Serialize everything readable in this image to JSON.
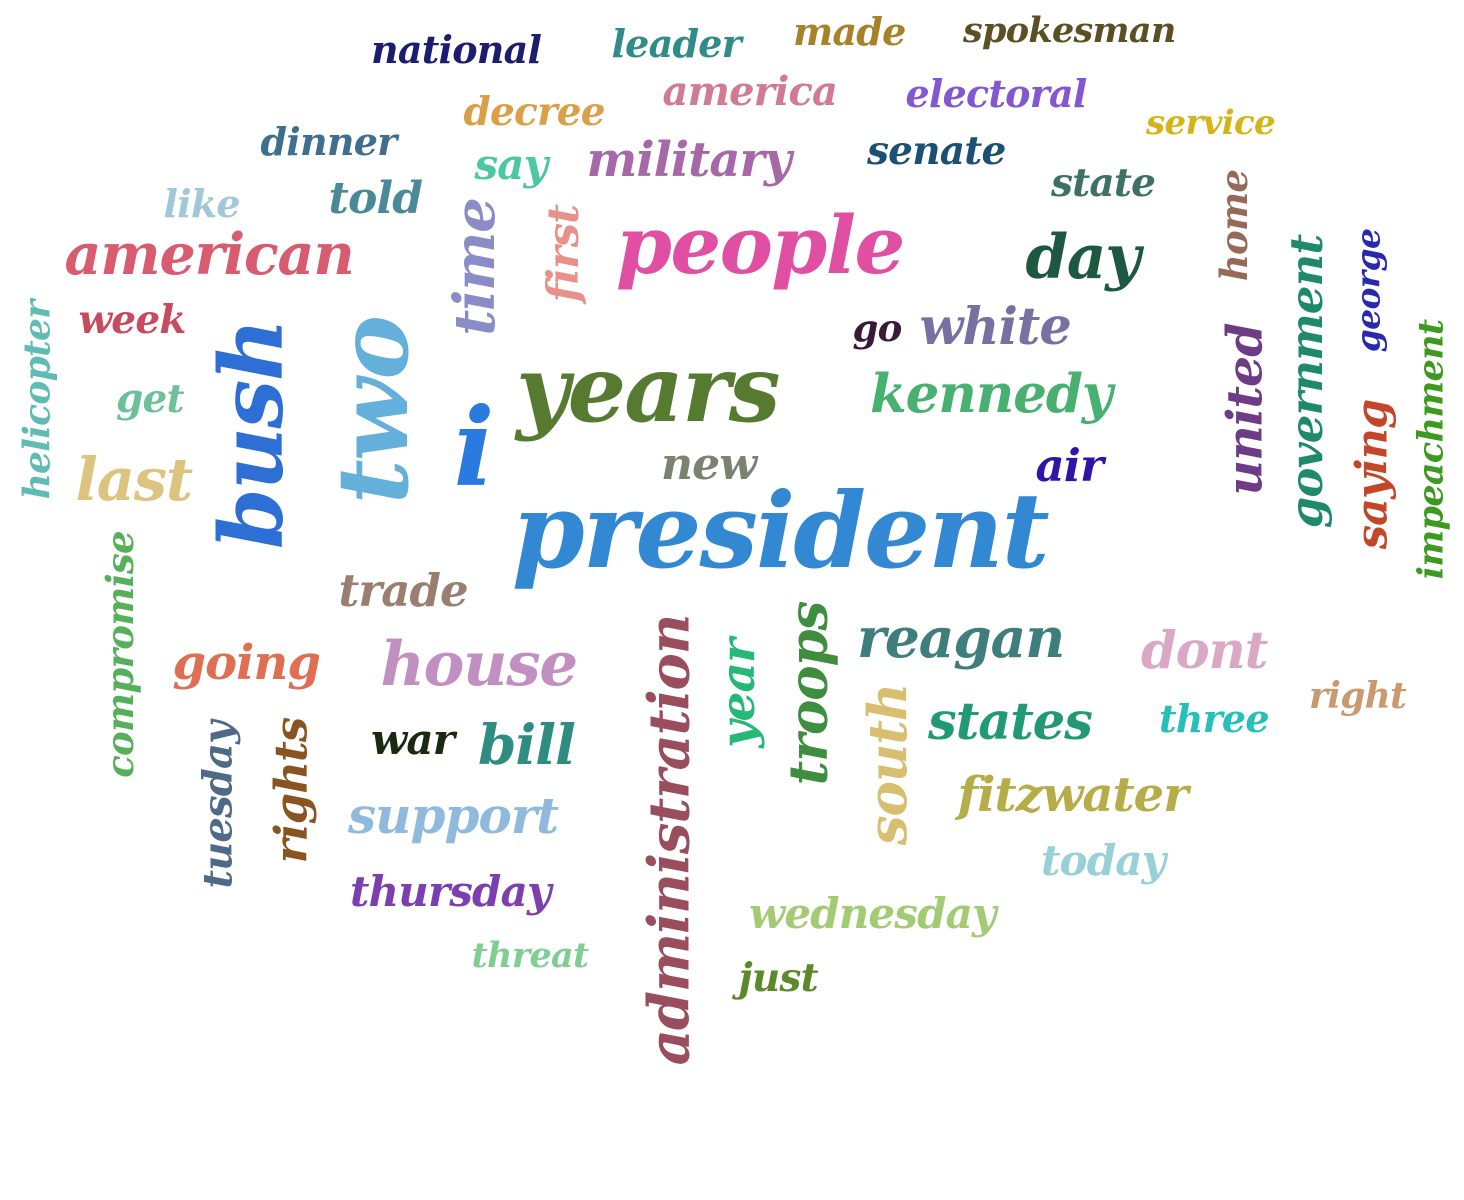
{
  "words": [
    {
      "text": "president",
      "color": "#3388d4",
      "vertical": false
    },
    {
      "text": "years",
      "color": "#557a30",
      "vertical": false
    },
    {
      "text": "people",
      "color": "#e04fa2",
      "vertical": false
    },
    {
      "text": "bush",
      "color": "#2e6fd6",
      "vertical": true
    },
    {
      "text": "two",
      "color": "#65b0da",
      "vertical": true
    },
    {
      "text": "i",
      "color": "#2a7ae0",
      "vertical": false
    },
    {
      "text": "american",
      "color": "#d95b70",
      "vertical": false
    },
    {
      "text": "administration",
      "color": "#9a4d5c",
      "vertical": true
    },
    {
      "text": "house",
      "color": "#c190c0",
      "vertical": false
    },
    {
      "text": "white",
      "color": "#7870a0",
      "vertical": false
    },
    {
      "text": "kennedy",
      "color": "#48b070",
      "vertical": false
    },
    {
      "text": "reagan",
      "color": "#3e7e7c",
      "vertical": false
    },
    {
      "text": "day",
      "color": "#1f5840",
      "vertical": false
    },
    {
      "text": "military",
      "color": "#a768a8",
      "vertical": false
    },
    {
      "text": "time",
      "color": "#8a8cc8",
      "vertical": true
    },
    {
      "text": "last",
      "color": "#dcc47e",
      "vertical": false
    },
    {
      "text": "united",
      "color": "#6e3b86",
      "vertical": true
    },
    {
      "text": "government",
      "color": "#1f8a6a",
      "vertical": true
    },
    {
      "text": "states",
      "color": "#219a74",
      "vertical": false
    },
    {
      "text": "fitzwater",
      "color": "#b6ac48",
      "vertical": false
    },
    {
      "text": "support",
      "color": "#8fbade",
      "vertical": false
    },
    {
      "text": "troops",
      "color": "#3e8e3e",
      "vertical": true
    },
    {
      "text": "dont",
      "color": "#d8a8c4",
      "vertical": false
    },
    {
      "text": "going",
      "color": "#de6f53",
      "vertical": false
    },
    {
      "text": "bill",
      "color": "#2f8c80",
      "vertical": false
    },
    {
      "text": "trade",
      "color": "#9a7e70",
      "vertical": false
    },
    {
      "text": "year",
      "color": "#25b877",
      "vertical": true
    },
    {
      "text": "south",
      "color": "#d8be6f",
      "vertical": true
    },
    {
      "text": "thursday",
      "color": "#7c3fb0",
      "vertical": false
    },
    {
      "text": "wednesday",
      "color": "#a3cb74",
      "vertical": false
    },
    {
      "text": "saying",
      "color": "#c3462a",
      "vertical": true
    },
    {
      "text": "national",
      "color": "#1c1c70",
      "vertical": false
    },
    {
      "text": "leader",
      "color": "#2f8c88",
      "vertical": false
    },
    {
      "text": "made",
      "color": "#a6822a",
      "vertical": false
    },
    {
      "text": "spokesman",
      "color": "#5a5024",
      "vertical": false
    },
    {
      "text": "america",
      "color": "#d27a94",
      "vertical": false
    },
    {
      "text": "electoral",
      "color": "#8356d2",
      "vertical": false
    },
    {
      "text": "decree",
      "color": "#d9a048",
      "vertical": false
    },
    {
      "text": "service",
      "color": "#d4b418",
      "vertical": false
    },
    {
      "text": "dinner",
      "color": "#3d6f8e",
      "vertical": false
    },
    {
      "text": "senate",
      "color": "#1c4f74",
      "vertical": false
    },
    {
      "text": "say",
      "color": "#4cc89e",
      "vertical": false
    },
    {
      "text": "state",
      "color": "#3f7066",
      "vertical": false
    },
    {
      "text": "like",
      "color": "#a0c8d8",
      "vertical": false
    },
    {
      "text": "told",
      "color": "#4a8a98",
      "vertical": false
    },
    {
      "text": "first",
      "color": "#e8908a",
      "vertical": true
    },
    {
      "text": "home",
      "color": "#956a58",
      "vertical": true
    },
    {
      "text": "george",
      "color": "#2828b0",
      "vertical": true
    },
    {
      "text": "week",
      "color": "#c84a60",
      "vertical": false
    },
    {
      "text": "go",
      "color": "#3a1838",
      "vertical": false
    },
    {
      "text": "helicopter",
      "color": "#5ebcb4",
      "vertical": true
    },
    {
      "text": "impeachment",
      "color": "#3c9a1e",
      "vertical": true
    },
    {
      "text": "get",
      "color": "#6cc09a",
      "vertical": false
    },
    {
      "text": "new",
      "color": "#7a8270",
      "vertical": false
    },
    {
      "text": "air",
      "color": "#2e14a8",
      "vertical": false
    },
    {
      "text": "compromise",
      "color": "#56b05a",
      "vertical": true
    },
    {
      "text": "right",
      "color": "#c99a70",
      "vertical": false
    },
    {
      "text": "three",
      "color": "#26c0b8",
      "vertical": false
    },
    {
      "text": "war",
      "color": "#1a2a10",
      "vertical": false
    },
    {
      "text": "tuesday",
      "color": "#4e6a88",
      "vertical": true
    },
    {
      "text": "rights",
      "color": "#8a5420",
      "vertical": true
    },
    {
      "text": "today",
      "color": "#98d0d8",
      "vertical": false
    },
    {
      "text": "threat",
      "color": "#80ce94",
      "vertical": false
    },
    {
      "text": "just",
      "color": "#5c8a2a",
      "vertical": false
    }
  ]
}
